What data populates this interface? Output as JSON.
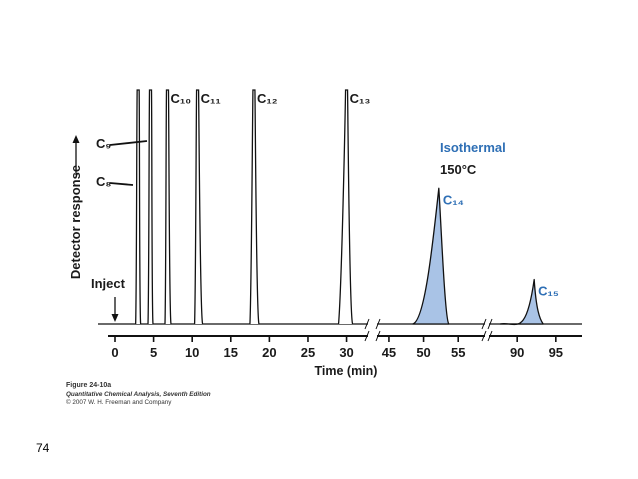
{
  "chart_data": {
    "type": "line",
    "title": "",
    "xlabel": "Time (min)",
    "ylabel": "Detector response",
    "x_ticks": [
      "0",
      "5",
      "10",
      "15",
      "20",
      "25",
      "30",
      "45",
      "50",
      "55",
      "90",
      "95"
    ],
    "x_segments": [
      {
        "start": 0,
        "end": 32
      },
      {
        "start": 44,
        "end": 58
      },
      {
        "start": 87,
        "end": 98
      }
    ],
    "annotations": {
      "inject": "Inject",
      "isothermal": "Isothermal",
      "temperature": "150°C"
    },
    "peaks": [
      {
        "name": "C₈",
        "time": 3.0,
        "height": 1.0,
        "offscale": true
      },
      {
        "name": "C₉",
        "time": 4.6,
        "height": 1.0,
        "offscale": true
      },
      {
        "name": "C₁₀",
        "time": 6.8,
        "height": 1.0,
        "offscale": true
      },
      {
        "name": "C₁₁",
        "time": 10.7,
        "height": 1.0,
        "offscale": true
      },
      {
        "name": "C₁₂",
        "time": 18.0,
        "height": 1.0,
        "offscale": true
      },
      {
        "name": "C₁₃",
        "time": 30.0,
        "height": 1.0,
        "offscale": true
      },
      {
        "name": "C₁₄",
        "time": 52.2,
        "height": 0.58,
        "offscale": false,
        "shaded": true
      },
      {
        "name": "C₁₅",
        "time": 92.2,
        "height": 0.19,
        "offscale": false,
        "shaded": true
      }
    ]
  },
  "caption": {
    "title": "Figure 24-10a",
    "subtitle": "Quantitative Chemical Analysis, Seventh Edition",
    "copyright": "© 2007 W. H. Freeman and Company"
  },
  "page_number": "74",
  "colors": {
    "trace": "#111111",
    "isothermal_label": "#2e6fb5",
    "peak_fill": "#a9c3e6"
  }
}
